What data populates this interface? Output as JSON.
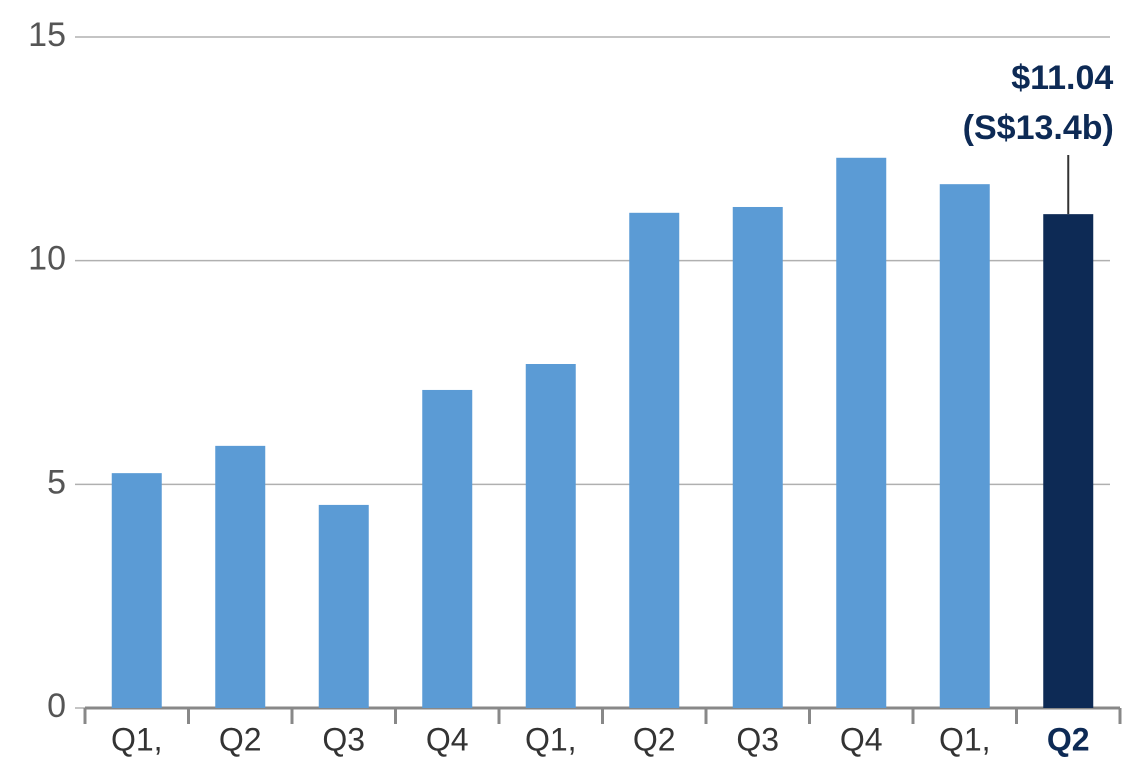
{
  "chart_data": {
    "type": "bar",
    "categories": [
      "Q1,",
      "Q2",
      "Q3",
      "Q4",
      "Q1,",
      "Q2",
      "Q3",
      "Q4",
      "Q1,",
      "Q2"
    ],
    "values": [
      5.25,
      5.86,
      4.54,
      7.11,
      7.69,
      11.07,
      11.2,
      12.3,
      11.71,
      11.04
    ],
    "value_labels": [
      null,
      null,
      null,
      null,
      null,
      null,
      null,
      null,
      null,
      "$11.04"
    ],
    "annotation": "(S$13.4b)",
    "colors": [
      "#5b9bd5",
      "#5b9bd5",
      "#5b9bd5",
      "#5b9bd5",
      "#5b9bd5",
      "#5b9bd5",
      "#5b9bd5",
      "#5b9bd5",
      "#5b9bd5",
      "#0d2a55"
    ],
    "ylim": [
      0,
      15
    ],
    "yticks": [
      0,
      5,
      10,
      15
    ],
    "grid": true
  }
}
